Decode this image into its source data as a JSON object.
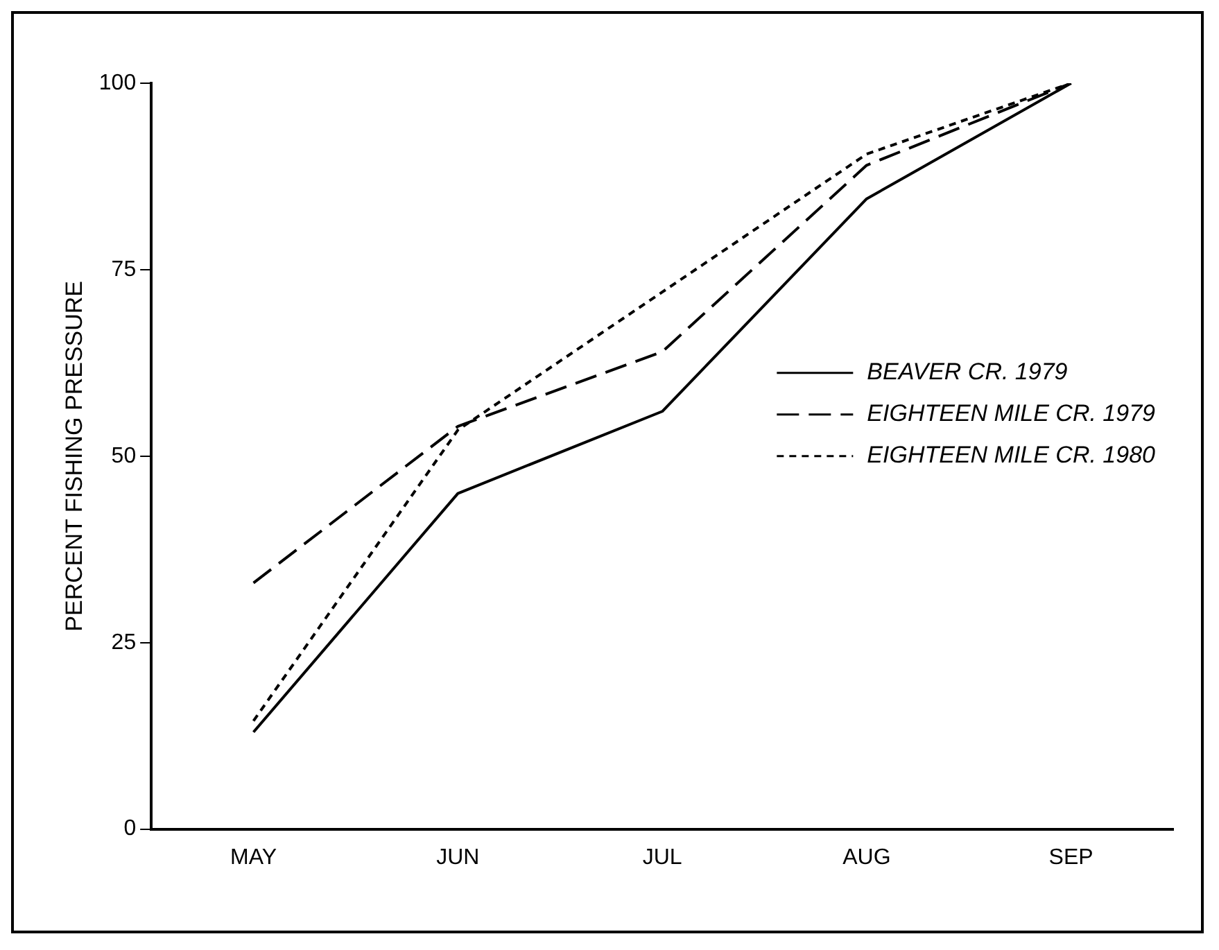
{
  "chart_data": {
    "type": "line",
    "ylabel": "PERCENT FISHING PRESSURE",
    "categories": [
      "MAY",
      "JUN",
      "JUL",
      "AUG",
      "SEP"
    ],
    "series": [
      {
        "name": "BEAVER CR. 1979",
        "color": "#000000",
        "line_style": "solid",
        "values": [
          13,
          45,
          56,
          84.5,
          100
        ]
      },
      {
        "name": "EIGHTEEN MILE CR. 1979",
        "color": "#000000",
        "line_style": "dashed",
        "values": [
          33,
          54,
          64,
          89,
          100
        ]
      },
      {
        "name": "EIGHTEEN MILE CR. 1980",
        "color": "#000000",
        "line_style": "dotted",
        "values": [
          14.5,
          53.5,
          72,
          90.5,
          100
        ]
      }
    ],
    "ylim": [
      0,
      100
    ],
    "yticks": [
      0,
      25,
      50,
      75,
      100
    ],
    "grid": false,
    "legend": "right",
    "marker": "none"
  }
}
